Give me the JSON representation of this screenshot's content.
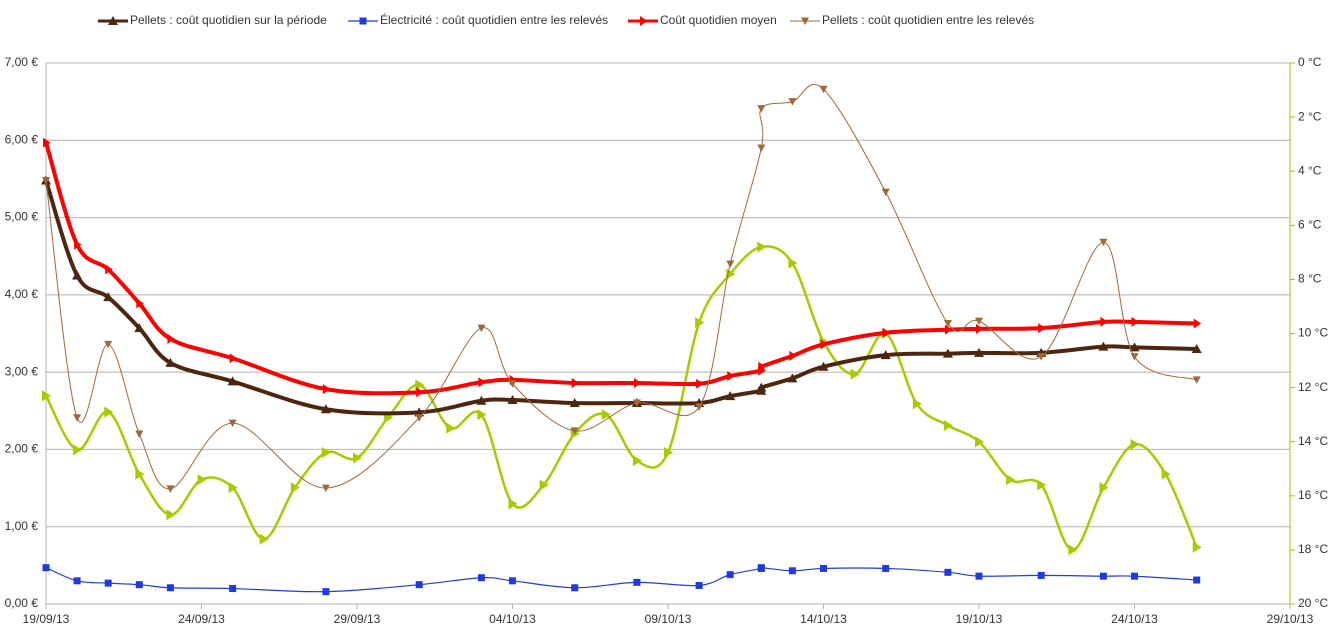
{
  "chart_data": {
    "type": "line",
    "xlim": [
      "2013-09-19",
      "2013-10-29"
    ],
    "xticks": [
      {
        "value": "2013-09-19",
        "label": "19/09/13"
      },
      {
        "value": "2013-09-24",
        "label": "24/09/13"
      },
      {
        "value": "2013-09-29",
        "label": "29/09/13"
      },
      {
        "value": "2013-10-04",
        "label": "04/10/13"
      },
      {
        "value": "2013-10-09",
        "label": "09/10/13"
      },
      {
        "value": "2013-10-14",
        "label": "14/10/13"
      },
      {
        "value": "2013-10-19",
        "label": "19/10/13"
      },
      {
        "value": "2013-10-24",
        "label": "24/10/13"
      },
      {
        "value": "2013-10-29",
        "label": "29/10/13"
      }
    ],
    "ylim": [
      0,
      7
    ],
    "yticks": [
      {
        "value": 0,
        "label": "0,00 €"
      },
      {
        "value": 1,
        "label": "1,00 €"
      },
      {
        "value": 2,
        "label": "2,00 €"
      },
      {
        "value": 3,
        "label": "3,00 €"
      },
      {
        "value": 4,
        "label": "4,00 €"
      },
      {
        "value": 5,
        "label": "5,00 €"
      },
      {
        "value": 6,
        "label": "6,00 €"
      },
      {
        "value": 7,
        "label": "7,00 €"
      }
    ],
    "y2lim": [
      0,
      20
    ],
    "y2_reversed": true,
    "y2ticks": [
      {
        "value": 0,
        "label": "0 °C"
      },
      {
        "value": 2,
        "label": "2 °C"
      },
      {
        "value": 4,
        "label": "4 °C"
      },
      {
        "value": 6,
        "label": "6 °C"
      },
      {
        "value": 8,
        "label": "8 °C"
      },
      {
        "value": 10,
        "label": "10 °C"
      },
      {
        "value": 12,
        "label": "12 °C"
      },
      {
        "value": 14,
        "label": "14 °C"
      },
      {
        "value": 16,
        "label": "16 °C"
      },
      {
        "value": 18,
        "label": "18 °C"
      },
      {
        "value": 20,
        "label": "20 °C"
      }
    ],
    "y2_color": "#ff0000",
    "y2_axis_color": "#99cc00",
    "grid": true,
    "smooth": true,
    "series": [
      {
        "name": "Pellets : coût quotidien sur la période",
        "color": "#4d2610",
        "width": 4,
        "marker": "triangle-up",
        "x": [
          "2013-09-19",
          "2013-09-20",
          "2013-09-21",
          "2013-09-22",
          "2013-09-23",
          "2013-09-25",
          "2013-09-28",
          "2013-10-01",
          "2013-10-03",
          "2013-10-04",
          "2013-10-06",
          "2013-10-08",
          "2013-10-10",
          "2013-10-11",
          "2013-10-12",
          "2013-10-12",
          "2013-10-13",
          "2013-10-14",
          "2013-10-16",
          "2013-10-18",
          "2013-10-19",
          "2013-10-21",
          "2013-10-23",
          "2013-10-24",
          "2013-10-26"
        ],
        "values": [
          5.48,
          4.25,
          3.97,
          3.57,
          3.12,
          2.88,
          2.52,
          2.48,
          2.63,
          2.64,
          2.6,
          2.6,
          2.6,
          2.69,
          2.76,
          2.8,
          2.92,
          3.07,
          3.22,
          3.24,
          3.25,
          3.25,
          3.33,
          3.32,
          3.3
        ]
      },
      {
        "name": "Électricité : coût quotidien entre les relevés",
        "color": "#1f3ae0",
        "width": 1.2,
        "marker": "square",
        "x": [
          "2013-09-19",
          "2013-09-20",
          "2013-09-21",
          "2013-09-22",
          "2013-09-23",
          "2013-09-25",
          "2013-09-28",
          "2013-10-01",
          "2013-10-03",
          "2013-10-04",
          "2013-10-06",
          "2013-10-08",
          "2013-10-10",
          "2013-10-11",
          "2013-10-12",
          "2013-10-12",
          "2013-10-13",
          "2013-10-14",
          "2013-10-16",
          "2013-10-18",
          "2013-10-19",
          "2013-10-21",
          "2013-10-23",
          "2013-10-24",
          "2013-10-26"
        ],
        "values": [
          0.47,
          0.3,
          0.27,
          0.25,
          0.21,
          0.2,
          0.16,
          0.25,
          0.34,
          0.3,
          0.21,
          0.28,
          0.24,
          0.38,
          0.46,
          0.47,
          0.43,
          0.46,
          0.46,
          0.41,
          0.36,
          0.37,
          0.36,
          0.36,
          0.31
        ]
      },
      {
        "name": "Coût quotidien moyen",
        "color": "#ff0000",
        "width": 4,
        "marker": "arrow-right",
        "x": [
          "2013-09-19",
          "2013-09-20",
          "2013-09-21",
          "2013-09-22",
          "2013-09-23",
          "2013-09-25",
          "2013-09-28",
          "2013-10-01",
          "2013-10-03",
          "2013-10-04",
          "2013-10-06",
          "2013-10-08",
          "2013-10-10",
          "2013-10-11",
          "2013-10-12",
          "2013-10-12",
          "2013-10-13",
          "2013-10-14",
          "2013-10-16",
          "2013-10-18",
          "2013-10-19",
          "2013-10-21",
          "2013-10-23",
          "2013-10-24",
          "2013-10-26"
        ],
        "values": [
          5.97,
          4.65,
          4.33,
          3.89,
          3.43,
          3.18,
          2.78,
          2.74,
          2.87,
          2.9,
          2.86,
          2.86,
          2.85,
          2.95,
          3.02,
          3.07,
          3.21,
          3.36,
          3.51,
          3.55,
          3.56,
          3.57,
          3.65,
          3.65,
          3.63
        ]
      },
      {
        "name": "Pellets : coût quotidien entre les relevés",
        "color": "#a0683a",
        "width": 1,
        "marker": "triangle-down",
        "x": [
          "2013-09-19",
          "2013-09-20",
          "2013-09-21",
          "2013-09-22",
          "2013-09-23",
          "2013-09-25",
          "2013-09-28",
          "2013-10-01",
          "2013-10-03",
          "2013-10-04",
          "2013-10-06",
          "2013-10-08",
          "2013-10-10",
          "2013-10-11",
          "2013-10-12",
          "2013-10-12",
          "2013-10-13",
          "2013-10-14",
          "2013-10-16",
          "2013-10-18",
          "2013-10-19",
          "2013-10-21",
          "2013-10-23",
          "2013-10-24",
          "2013-10-26"
        ],
        "values": [
          5.48,
          2.41,
          3.36,
          2.2,
          1.49,
          2.34,
          1.5,
          2.41,
          3.57,
          2.85,
          2.24,
          2.6,
          2.55,
          4.4,
          5.9,
          6.41,
          6.5,
          6.66,
          5.33,
          3.63,
          3.66,
          3.2,
          4.68,
          3.2,
          2.9
        ]
      },
      {
        "color": "#a6cc00",
        "width": 2.5,
        "marker": "triangle-right",
        "axis": "y2",
        "x": [
          "2013-09-19",
          "2013-09-20",
          "2013-09-21",
          "2013-09-22",
          "2013-09-23",
          "2013-09-24",
          "2013-09-25",
          "2013-09-26",
          "2013-09-27",
          "2013-09-28",
          "2013-09-29",
          "2013-09-30",
          "2013-10-01",
          "2013-10-02",
          "2013-10-03",
          "2013-10-04",
          "2013-10-05",
          "2013-10-06",
          "2013-10-07",
          "2013-10-08",
          "2013-10-09",
          "2013-10-10",
          "2013-10-11",
          "2013-10-12",
          "2013-10-13",
          "2013-10-14",
          "2013-10-15",
          "2013-10-16",
          "2013-10-17",
          "2013-10-18",
          "2013-10-19",
          "2013-10-20",
          "2013-10-21",
          "2013-10-22",
          "2013-10-23",
          "2013-10-24",
          "2013-10-25",
          "2013-10-26"
        ],
        "values": [
          12.3,
          14.3,
          12.9,
          15.2,
          16.7,
          15.4,
          15.7,
          17.6,
          15.7,
          14.4,
          14.6,
          13.1,
          11.9,
          13.5,
          13.0,
          16.3,
          15.6,
          13.7,
          13.0,
          14.7,
          14.4,
          9.6,
          7.8,
          6.8,
          7.4,
          10.3,
          11.5,
          10.0,
          12.6,
          13.4,
          14.0,
          15.4,
          15.6,
          18.0,
          15.7,
          14.1,
          15.2,
          17.9
        ]
      }
    ]
  }
}
